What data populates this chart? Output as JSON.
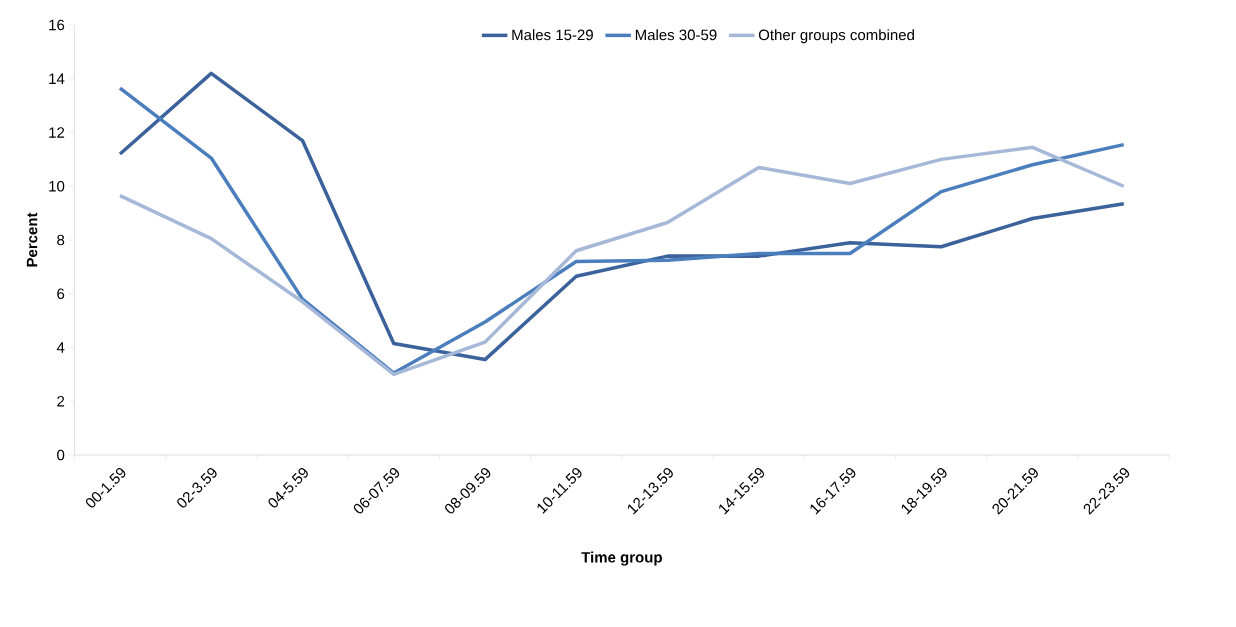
{
  "chart_data": {
    "type": "line",
    "xlabel": "Time group",
    "ylabel": "Percent",
    "categories": [
      "00-1.59",
      "02-3.59",
      "04-5.59",
      "06-07.59",
      "08-09.59",
      "10-11.59",
      "12-13.59",
      "14-15.59",
      "16-17.59",
      "18-19.59",
      "20-21.59",
      "22-23.59"
    ],
    "series": [
      {
        "name": "Males 15-29",
        "color": "#3b629b",
        "values": [
          11.2,
          14.2,
          11.7,
          4.15,
          3.55,
          6.65,
          7.4,
          7.4,
          7.9,
          7.75,
          8.8,
          9.35
        ]
      },
      {
        "name": "Males 30-59",
        "color": "#4a7ebd",
        "values": [
          13.65,
          11.05,
          5.8,
          3.05,
          4.95,
          7.2,
          7.25,
          7.5,
          7.5,
          9.8,
          10.8,
          11.55
        ]
      },
      {
        "name": "Other groups combined",
        "color": "#a6b8d8",
        "values": [
          9.65,
          8.05,
          5.7,
          3.0,
          4.2,
          7.6,
          8.65,
          10.7,
          10.1,
          11.0,
          11.45,
          10.0
        ]
      }
    ],
    "ylim": [
      0,
      16
    ],
    "yticks": [
      0,
      2,
      4,
      6,
      8,
      10,
      12,
      14,
      16
    ],
    "grid": false,
    "legend": "top",
    "marker": "none",
    "line_style": "solid"
  }
}
